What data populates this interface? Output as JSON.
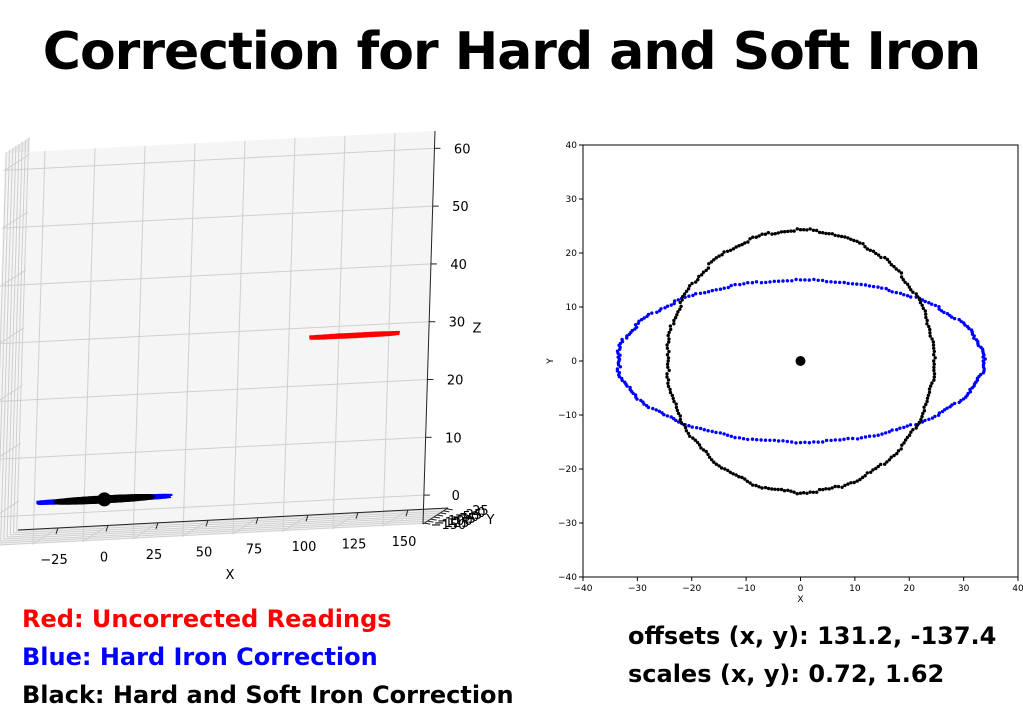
{
  "title": "Correction for Hard and Soft Iron",
  "legend": [
    {
      "text": "Red: Uncorrected Readings",
      "color": "#ff0000"
    },
    {
      "text": "Blue: Hard Iron Correction",
      "color": "#0000ff"
    },
    {
      "text": "Black: Hard and Soft Iron Correction",
      "color": "#000000"
    }
  ],
  "stats": {
    "offsets": "offsets (x, y): 131.2, -137.4",
    "scales": "scales (x, y): 0.72, 1.62"
  },
  "chart_data": [
    {
      "type": "scatter",
      "view": "3d",
      "xlabel": "X",
      "ylabel": "Y",
      "zlabel": "Z",
      "xticks": [
        -25,
        0,
        25,
        50,
        75,
        100,
        125,
        150
      ],
      "yticks": [
        25,
        0,
        -25,
        -50,
        -75,
        -100,
        -125,
        -150
      ],
      "zticks": [
        0,
        10,
        20,
        30,
        40,
        50,
        60
      ],
      "xlim": [
        -45,
        170
      ],
      "ylim": [
        -160,
        35
      ],
      "zlim": [
        -5,
        63
      ],
      "grid": true,
      "series": [
        {
          "color": "#ff0000",
          "shape": "ellipse",
          "center": [
            131.2,
            -137.4,
            28
          ],
          "radius_x": 22,
          "radius_y": 10
        },
        {
          "color": "#0000ff",
          "shape": "ellipse",
          "center": [
            0,
            0,
            0
          ],
          "radius_x": 33,
          "radius_y": 15
        },
        {
          "color": "#000000",
          "shape": "ellipse",
          "center": [
            0,
            0,
            0
          ],
          "radius_x": 24,
          "radius_y": 24
        },
        {
          "color": "#000000",
          "shape": "point",
          "center": [
            0,
            0,
            0
          ]
        }
      ]
    },
    {
      "type": "scatter",
      "view": "2d",
      "xlabel": "X",
      "ylabel": "Y",
      "xlim": [
        -40,
        40
      ],
      "ylim": [
        -40,
        40
      ],
      "xticks": [
        -40,
        -30,
        -20,
        -10,
        0,
        10,
        20,
        30,
        40
      ],
      "yticks": [
        -40,
        -30,
        -20,
        -10,
        0,
        10,
        20,
        30,
        40
      ],
      "grid": false,
      "series": [
        {
          "color": "#0000ff",
          "shape": "ellipse",
          "center": [
            0,
            0
          ],
          "radius_x": 33.6,
          "radius_y": 15
        },
        {
          "color": "#000000",
          "shape": "ellipse",
          "center": [
            0,
            0
          ],
          "radius_x": 24.5,
          "radius_y": 24.3
        },
        {
          "color": "#000000",
          "shape": "point",
          "center": [
            0,
            0
          ]
        }
      ]
    }
  ]
}
